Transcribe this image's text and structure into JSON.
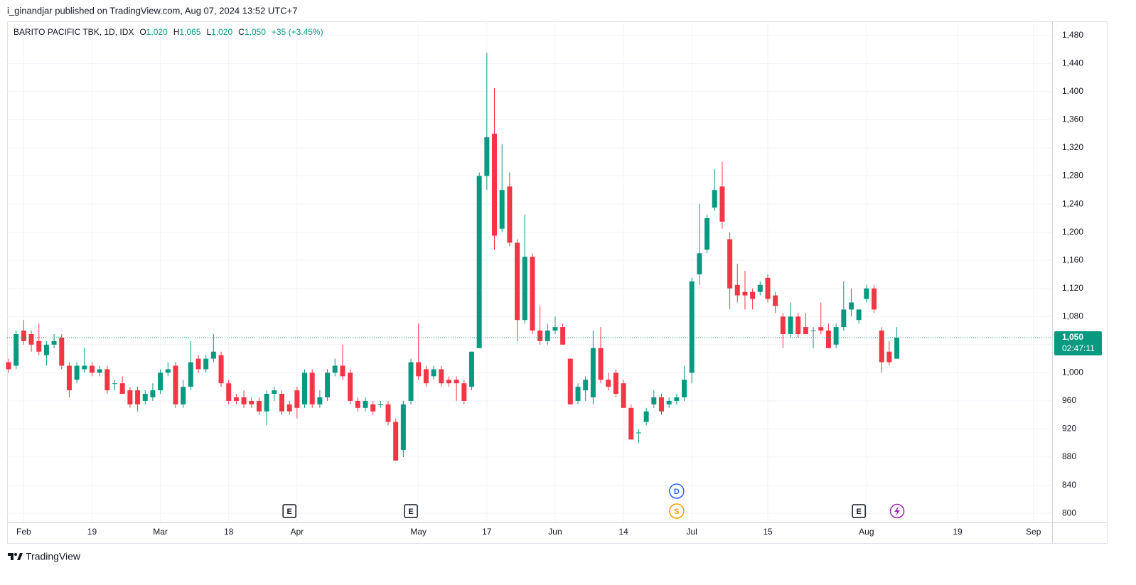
{
  "header": "i_ginandjar published on TradingView.com, Aug 07, 2024 13:52 UTC+7",
  "legend": {
    "symbol": "BARITO PACIFIC TBK, 1D, IDX",
    "fields": [
      {
        "key": "O",
        "text": "1,020"
      },
      {
        "key": "H",
        "text": "1,065"
      },
      {
        "key": "L",
        "text": "1,020"
      },
      {
        "key": "C",
        "text": "1,050"
      }
    ],
    "change": "+35 (+3.45%)"
  },
  "footer": "TradingView",
  "chart_data": {
    "type": "candlestick",
    "up_color": "#089981",
    "down_color": "#f23645",
    "grid": true,
    "categories": [
      null,
      null,
      "Feb",
      null,
      null,
      null,
      null,
      null,
      null,
      null,
      null,
      "19",
      null,
      null,
      null,
      null,
      null,
      null,
      null,
      null,
      "Mar",
      null,
      null,
      null,
      null,
      null,
      null,
      null,
      null,
      "18",
      null,
      null,
      null,
      null,
      null,
      null,
      null,
      null,
      "Apr",
      null,
      null,
      null,
      null,
      null,
      null,
      null,
      null,
      null,
      null,
      null,
      null,
      null,
      null,
      null,
      "May",
      null,
      null,
      null,
      null,
      null,
      null,
      null,
      null,
      "17",
      null,
      null,
      null,
      null,
      null,
      null,
      null,
      null,
      "Jun",
      null,
      null,
      null,
      null,
      null,
      null,
      null,
      null,
      "14",
      null,
      null,
      null,
      null,
      null,
      null,
      null,
      null,
      "Jul",
      null,
      null,
      null,
      null,
      null,
      null,
      null,
      null,
      null,
      "15",
      null,
      null,
      null,
      null,
      null,
      null,
      null,
      null,
      null,
      null,
      null,
      null,
      "Aug",
      null,
      null,
      null,
      null,
      null,
      null,
      null,
      null,
      null,
      null,
      null,
      "19",
      null,
      null,
      null,
      null,
      null,
      null,
      null,
      null,
      null,
      "Sep"
    ],
    "open": [
      1015,
      1010,
      1060,
      1055,
      1045,
      1025,
      1040,
      1050,
      1010,
      990,
      1005,
      1010,
      1000,
      1005,
      985,
      985,
      975,
      975,
      960,
      965,
      975,
      1000,
      1010,
      955,
      980,
      1020,
      1005,
      1020,
      1025,
      985,
      965,
      965,
      960,
      960,
      945,
      970,
      970,
      955,
      975,
      955,
      1000,
      955,
      965,
      1000,
      1010,
      1000,
      960,
      950,
      955,
      955,
      955,
      930,
      890,
      960,
      1015,
      1005,
      995,
      1005,
      990,
      990,
      985,
      980,
      1035,
      1280,
      1340,
      1205,
      1265,
      1185,
      1075,
      1165,
      1060,
      1045,
      1060,
      1065,
      1020,
      960,
      975,
      965,
      1035,
      990,
      1000,
      985,
      950,
      915,
      930,
      955,
      965,
      955,
      960,
      965,
      1000,
      1140,
      1175,
      1235,
      1265,
      1190,
      1125,
      1115,
      1115,
      1115,
      1135,
      1110,
      1080,
      1055,
      1080,
      1065,
      1060,
      1065,
      1060,
      1040,
      1065,
      1090,
      1075,
      1105,
      1120,
      1060,
      1030,
      1020,
      null,
      null,
      null,
      null,
      null,
      null,
      null,
      null,
      null,
      null,
      null,
      null,
      null,
      null,
      null,
      null,
      null,
      null
    ],
    "high": [
      1020,
      1060,
      1075,
      1060,
      1070,
      1045,
      1055,
      1055,
      1015,
      1015,
      1035,
      1015,
      1010,
      1010,
      990,
      995,
      980,
      980,
      975,
      985,
      1005,
      1015,
      1015,
      990,
      1045,
      1025,
      1025,
      1055,
      1030,
      990,
      970,
      975,
      965,
      965,
      975,
      980,
      975,
      960,
      980,
      1005,
      1005,
      975,
      1005,
      1020,
      1040,
      1005,
      965,
      965,
      960,
      960,
      960,
      935,
      960,
      1020,
      1070,
      1010,
      1010,
      1010,
      995,
      995,
      990,
      1030,
      1285,
      1455,
      1405,
      1325,
      1285,
      1190,
      1225,
      1170,
      1095,
      1070,
      1080,
      1070,
      1020,
      985,
      995,
      1060,
      1065,
      1000,
      1005,
      990,
      955,
      920,
      950,
      975,
      970,
      965,
      970,
      1010,
      1135,
      1240,
      1225,
      1290,
      1300,
      1200,
      1155,
      1145,
      1120,
      1130,
      1140,
      1115,
      1085,
      1100,
      1085,
      1085,
      1065,
      1100,
      1070,
      1070,
      1130,
      1120,
      1090,
      1125,
      1125,
      1065,
      1045,
      1065,
      null,
      null,
      null,
      null,
      null,
      null,
      null,
      null,
      null,
      null,
      null,
      null,
      null,
      null,
      null,
      null,
      null,
      null
    ],
    "low": [
      1000,
      1005,
      1040,
      1030,
      1025,
      1010,
      1035,
      1005,
      965,
      985,
      1000,
      995,
      995,
      970,
      975,
      970,
      950,
      945,
      955,
      960,
      970,
      995,
      950,
      950,
      975,
      1000,
      1000,
      1015,
      980,
      955,
      955,
      950,
      950,
      940,
      925,
      960,
      940,
      940,
      935,
      950,
      950,
      950,
      960,
      995,
      990,
      955,
      945,
      945,
      940,
      950,
      925,
      875,
      880,
      955,
      990,
      980,
      990,
      980,
      980,
      960,
      955,
      975,
      1035,
      1260,
      1175,
      1200,
      1180,
      1045,
      1070,
      1055,
      1040,
      1040,
      1055,
      1040,
      955,
      955,
      960,
      955,
      985,
      975,
      965,
      950,
      905,
      900,
      925,
      950,
      940,
      950,
      955,
      960,
      985,
      1125,
      1170,
      1230,
      1205,
      1090,
      1100,
      1090,
      1090,
      1110,
      1100,
      1085,
      1035,
      1050,
      1050,
      1055,
      1035,
      1055,
      1035,
      1035,
      1060,
      1080,
      1070,
      1100,
      1085,
      1000,
      1010,
      1020,
      null,
      null,
      null,
      null,
      null,
      null,
      null,
      null,
      null,
      null,
      null,
      null,
      null,
      null,
      null,
      null,
      null,
      null
    ],
    "close": [
      1005,
      1055,
      1045,
      1040,
      1030,
      1040,
      1045,
      1010,
      975,
      1010,
      1010,
      1000,
      1005,
      975,
      985,
      970,
      955,
      955,
      970,
      975,
      1000,
      1005,
      955,
      980,
      1015,
      1005,
      1020,
      1030,
      985,
      960,
      960,
      955,
      955,
      945,
      970,
      975,
      945,
      945,
      950,
      1000,
      955,
      965,
      1000,
      1010,
      995,
      960,
      950,
      960,
      945,
      955,
      930,
      875,
      955,
      1015,
      995,
      985,
      1005,
      985,
      985,
      985,
      960,
      1030,
      1280,
      1335,
      1195,
      1260,
      1185,
      1075,
      1165,
      1060,
      1045,
      1060,
      1065,
      1040,
      955,
      980,
      990,
      1035,
      990,
      980,
      970,
      950,
      905,
      915,
      945,
      965,
      945,
      960,
      965,
      990,
      1130,
      1170,
      1220,
      1260,
      1215,
      1120,
      1110,
      1110,
      1105,
      1125,
      1105,
      1095,
      1055,
      1080,
      1055,
      1055,
      1060,
      1060,
      1035,
      1065,
      1090,
      1100,
      1090,
      1120,
      1090,
      1015,
      1015,
      1050,
      null,
      null,
      null,
      null,
      null,
      null,
      null,
      null,
      null,
      null,
      null,
      null,
      null,
      null,
      null,
      null,
      null,
      null
    ],
    "ylim": [
      787,
      1500
    ],
    "yticks": [
      800,
      840,
      880,
      920,
      960,
      {
        "value": 1000,
        "label": "1,000"
      },
      {
        "value": 1040,
        "label": "1,040"
      },
      {
        "value": 1080,
        "label": "1,080"
      },
      {
        "value": 1120,
        "label": "1,120"
      },
      {
        "value": 1160,
        "label": "1,160"
      },
      {
        "value": 1200,
        "label": "1,200"
      },
      {
        "value": 1240,
        "label": "1,240"
      },
      {
        "value": 1280,
        "label": "1,280"
      },
      {
        "value": 1320,
        "label": "1,320"
      },
      {
        "value": 1360,
        "label": "1,360"
      },
      {
        "value": 1400,
        "label": "1,400"
      },
      {
        "value": 1440,
        "label": "1,440"
      },
      {
        "value": 1480,
        "label": "1,480"
      }
    ],
    "last_price": {
      "value": 1050,
      "label": "1,050"
    },
    "countdown": "02:47:11",
    "events": [
      {
        "label": "E",
        "at": 37,
        "color": "#131722"
      },
      {
        "label": "E",
        "at": 53,
        "color": "#131722"
      },
      {
        "label": "S",
        "at": 88,
        "color": "#ff9800"
      },
      {
        "label": "D",
        "at": 88,
        "color": "#2962ff"
      },
      {
        "label": "E",
        "at": 112,
        "color": "#131722"
      }
    ]
  }
}
